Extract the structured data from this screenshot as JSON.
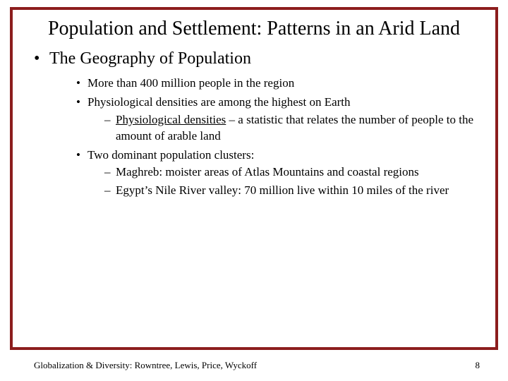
{
  "border_color": "#8c1d1d",
  "background_color": "#ffffff",
  "title": "Population and Settlement: Patterns in an Arid Land",
  "title_fontsize": 28,
  "bullets": {
    "l1_0": "The Geography of Population",
    "l2_0": "More than 400 million people in the region",
    "l2_1": "Physiological densities are among the highest on Earth",
    "l3_0_term": "Physiological densities",
    "l3_0_rest": " – a statistic that relates the number of people to the amount of arable land",
    "l2_2": "Two dominant population clusters:",
    "l3_1": "Maghreb: moister areas of Atlas Mountains and coastal regions",
    "l3_2": "Egypt’s Nile River valley: 70 million live within 10 miles of the river"
  },
  "body_fontsize_l1": 24,
  "body_fontsize_l2": 17,
  "footer": "Globalization & Diversity: Rowntree, Lewis, Price, Wyckoff",
  "page_number": "8",
  "footer_fontsize": 13
}
